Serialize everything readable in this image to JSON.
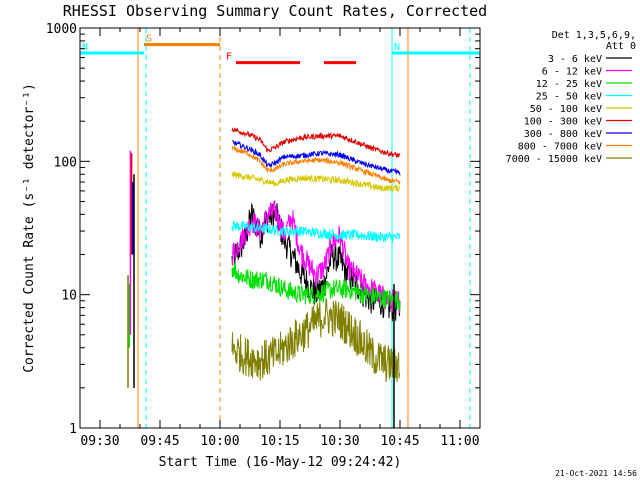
{
  "chart_data": {
    "type": "line",
    "title": "RHESSI Observing Summary Count Rates, Corrected",
    "xlabel": "Start Time (16-May-12 09:24:42)",
    "ylabel": "Corrected Count Rate (s⁻¹ detector⁻¹)",
    "yscale": "log",
    "ylim": [
      1,
      1000
    ],
    "xlim_minutes_after_0930": [
      -5,
      95
    ],
    "x_ticks": [
      {
        "label": "09:30",
        "t": 0
      },
      {
        "label": "09:45",
        "t": 15
      },
      {
        "label": "10:00",
        "t": 30
      },
      {
        "label": "10:15",
        "t": 45
      },
      {
        "label": "10:30",
        "t": 60
      },
      {
        "label": "10:45",
        "t": 75
      },
      {
        "label": "11:00",
        "t": 90
      }
    ],
    "y_ticks": [
      {
        "label": "1",
        "v": 1
      },
      {
        "label": "10",
        "v": 10
      },
      {
        "label": "100",
        "v": 100
      },
      {
        "label": "1000",
        "v": 1000
      }
    ],
    "legend": {
      "position": "right",
      "header": [
        "Det 1,3,5,6,9,",
        "Att 0"
      ],
      "entries": [
        {
          "name": "3 - 6 keV",
          "color": "#000000"
        },
        {
          "name": "6 - 12 keV",
          "color": "#ff00ff"
        },
        {
          "name": "12 - 25 keV",
          "color": "#00e000"
        },
        {
          "name": "25 - 50 keV",
          "color": "#00ffff"
        },
        {
          "name": "50 - 100 keV",
          "color": "#d6c800"
        },
        {
          "name": "100 - 300 keV",
          "color": "#e00000"
        },
        {
          "name": "300 - 800 keV",
          "color": "#0000ee"
        },
        {
          "name": "800 - 7000 keV",
          "color": "#ff8000"
        },
        {
          "name": "7000 - 15000 keV",
          "color": "#808000"
        }
      ]
    },
    "flags": [
      {
        "label": "S",
        "color": "#ff8000",
        "level": 750,
        "t_start": 11,
        "t_end": 30
      },
      {
        "label": "N",
        "color": "#00ffff",
        "level": 650,
        "t_start": -5,
        "t_end": 11
      },
      {
        "label": "N",
        "color": "#00ffff",
        "level": 650,
        "t_start": 73,
        "t_end": 95
      },
      {
        "label": "F",
        "color": "#ff0000",
        "level": 550,
        "t_start": 34,
        "t_end": 50
      },
      {
        "label": "",
        "color": "#ff0000",
        "level": 550,
        "t_start": 56,
        "t_end": 64
      }
    ],
    "vlines": [
      {
        "t": 9.5,
        "color": "#ff8000",
        "style": "solid"
      },
      {
        "t": 11.5,
        "color": "#00ffff",
        "style": "dashed"
      },
      {
        "t": 30,
        "color": "#ff8000",
        "style": "dashed"
      },
      {
        "t": 73,
        "color": "#00ffff",
        "style": "solid"
      },
      {
        "t": 77,
        "color": "#ff8000",
        "style": "solid"
      },
      {
        "t": 92.5,
        "color": "#00ffff",
        "style": "dashed"
      }
    ],
    "series": [
      {
        "name": "3 - 6 keV",
        "color": "#000000",
        "noise": 0.22,
        "points": [
          [
            33,
            18
          ],
          [
            36,
            25
          ],
          [
            38,
            40
          ],
          [
            40,
            28
          ],
          [
            42,
            38
          ],
          [
            44,
            40
          ],
          [
            46,
            26
          ],
          [
            48,
            20
          ],
          [
            50,
            15
          ],
          [
            52,
            12
          ],
          [
            54,
            10
          ],
          [
            56,
            12
          ],
          [
            58,
            20
          ],
          [
            60,
            18
          ],
          [
            62,
            14
          ],
          [
            64,
            12
          ],
          [
            66,
            10
          ],
          [
            68,
            9
          ],
          [
            70,
            9
          ],
          [
            72,
            8
          ],
          [
            74,
            8
          ],
          [
            75,
            8
          ]
        ]
      },
      {
        "name": "6 - 12 keV",
        "color": "#ff00ff",
        "noise": 0.18,
        "points": [
          [
            33,
            20
          ],
          [
            36,
            28
          ],
          [
            38,
            36
          ],
          [
            40,
            30
          ],
          [
            42,
            40
          ],
          [
            44,
            42
          ],
          [
            46,
            28
          ],
          [
            48,
            38
          ],
          [
            50,
            22
          ],
          [
            52,
            17
          ],
          [
            54,
            14
          ],
          [
            56,
            16
          ],
          [
            58,
            24
          ],
          [
            60,
            28
          ],
          [
            62,
            16
          ],
          [
            64,
            14
          ],
          [
            66,
            12
          ],
          [
            68,
            11
          ],
          [
            70,
            10
          ],
          [
            72,
            9
          ],
          [
            74,
            9
          ],
          [
            75,
            9
          ]
        ]
      },
      {
        "name": "12 - 25 keV",
        "color": "#00e000",
        "noise": 0.15,
        "points": [
          [
            33,
            16
          ],
          [
            35,
            14
          ],
          [
            38,
            13
          ],
          [
            42,
            13
          ],
          [
            46,
            11
          ],
          [
            50,
            10
          ],
          [
            54,
            10
          ],
          [
            58,
            11
          ],
          [
            62,
            11
          ],
          [
            66,
            10
          ],
          [
            70,
            9.5
          ],
          [
            75,
            9
          ]
        ]
      },
      {
        "name": "25 - 50 keV",
        "color": "#00ffff",
        "noise": 0.08,
        "points": [
          [
            33,
            33
          ],
          [
            38,
            32
          ],
          [
            42,
            31
          ],
          [
            46,
            30
          ],
          [
            50,
            30
          ],
          [
            55,
            29
          ],
          [
            60,
            28
          ],
          [
            65,
            28
          ],
          [
            70,
            27
          ],
          [
            75,
            27
          ]
        ]
      },
      {
        "name": "50 - 100 keV",
        "color": "#d6c800",
        "noise": 0.05,
        "points": [
          [
            33,
            80
          ],
          [
            38,
            75
          ],
          [
            42,
            70
          ],
          [
            44,
            68
          ],
          [
            46,
            72
          ],
          [
            50,
            75
          ],
          [
            55,
            74
          ],
          [
            60,
            72
          ],
          [
            65,
            68
          ],
          [
            70,
            63
          ],
          [
            75,
            63
          ]
        ]
      },
      {
        "name": "100 - 300 keV",
        "color": "#e00000",
        "noise": 0.04,
        "points": [
          [
            33,
            175
          ],
          [
            37,
            160
          ],
          [
            40,
            145
          ],
          [
            42,
            120
          ],
          [
            44,
            128
          ],
          [
            46,
            140
          ],
          [
            50,
            150
          ],
          [
            55,
            155
          ],
          [
            60,
            155
          ],
          [
            64,
            140
          ],
          [
            68,
            125
          ],
          [
            72,
            115
          ],
          [
            75,
            110
          ]
        ]
      },
      {
        "name": "300 - 800 keV",
        "color": "#0000ee",
        "noise": 0.04,
        "points": [
          [
            33,
            140
          ],
          [
            37,
            125
          ],
          [
            40,
            112
          ],
          [
            42,
            92
          ],
          [
            44,
            98
          ],
          [
            46,
            108
          ],
          [
            50,
            110
          ],
          [
            55,
            115
          ],
          [
            60,
            112
          ],
          [
            64,
            100
          ],
          [
            68,
            92
          ],
          [
            72,
            85
          ],
          [
            75,
            82
          ]
        ]
      },
      {
        "name": "800 - 7000 keV",
        "color": "#ff8000",
        "noise": 0.04,
        "points": [
          [
            33,
            125
          ],
          [
            37,
            115
          ],
          [
            40,
            100
          ],
          [
            42,
            85
          ],
          [
            44,
            88
          ],
          [
            46,
            95
          ],
          [
            50,
            100
          ],
          [
            55,
            102
          ],
          [
            60,
            98
          ],
          [
            64,
            88
          ],
          [
            68,
            80
          ],
          [
            72,
            72
          ],
          [
            75,
            70
          ]
        ]
      },
      {
        "name": "7000 - 15000 keV",
        "color": "#808000",
        "noise": 0.3,
        "points": [
          [
            33,
            4
          ],
          [
            36,
            3.5
          ],
          [
            40,
            3.2
          ],
          [
            44,
            3.5
          ],
          [
            48,
            4.5
          ],
          [
            52,
            5.5
          ],
          [
            56,
            7
          ],
          [
            60,
            6.5
          ],
          [
            64,
            5
          ],
          [
            68,
            3.5
          ],
          [
            72,
            3
          ],
          [
            75,
            3
          ]
        ]
      }
    ],
    "spikes": [
      {
        "t": 7,
        "color": "#808000",
        "low": 2,
        "high": 14
      },
      {
        "t": 7.3,
        "color": "#00e000",
        "low": 4,
        "high": 12
      },
      {
        "t": 7.6,
        "color": "#ff00ff",
        "low": 5,
        "high": 120
      },
      {
        "t": 7.9,
        "color": "#e00000",
        "low": 20,
        "high": 115
      },
      {
        "t": 8.2,
        "color": "#0000ee",
        "low": 20,
        "high": 70
      },
      {
        "t": 8.5,
        "color": "#000000",
        "low": 2,
        "high": 80
      },
      {
        "t": 73.5,
        "color": "#000000",
        "low": 1,
        "high": 12
      }
    ]
  },
  "footer": {
    "date_stamp": "21-Oct-2021 14:56"
  }
}
